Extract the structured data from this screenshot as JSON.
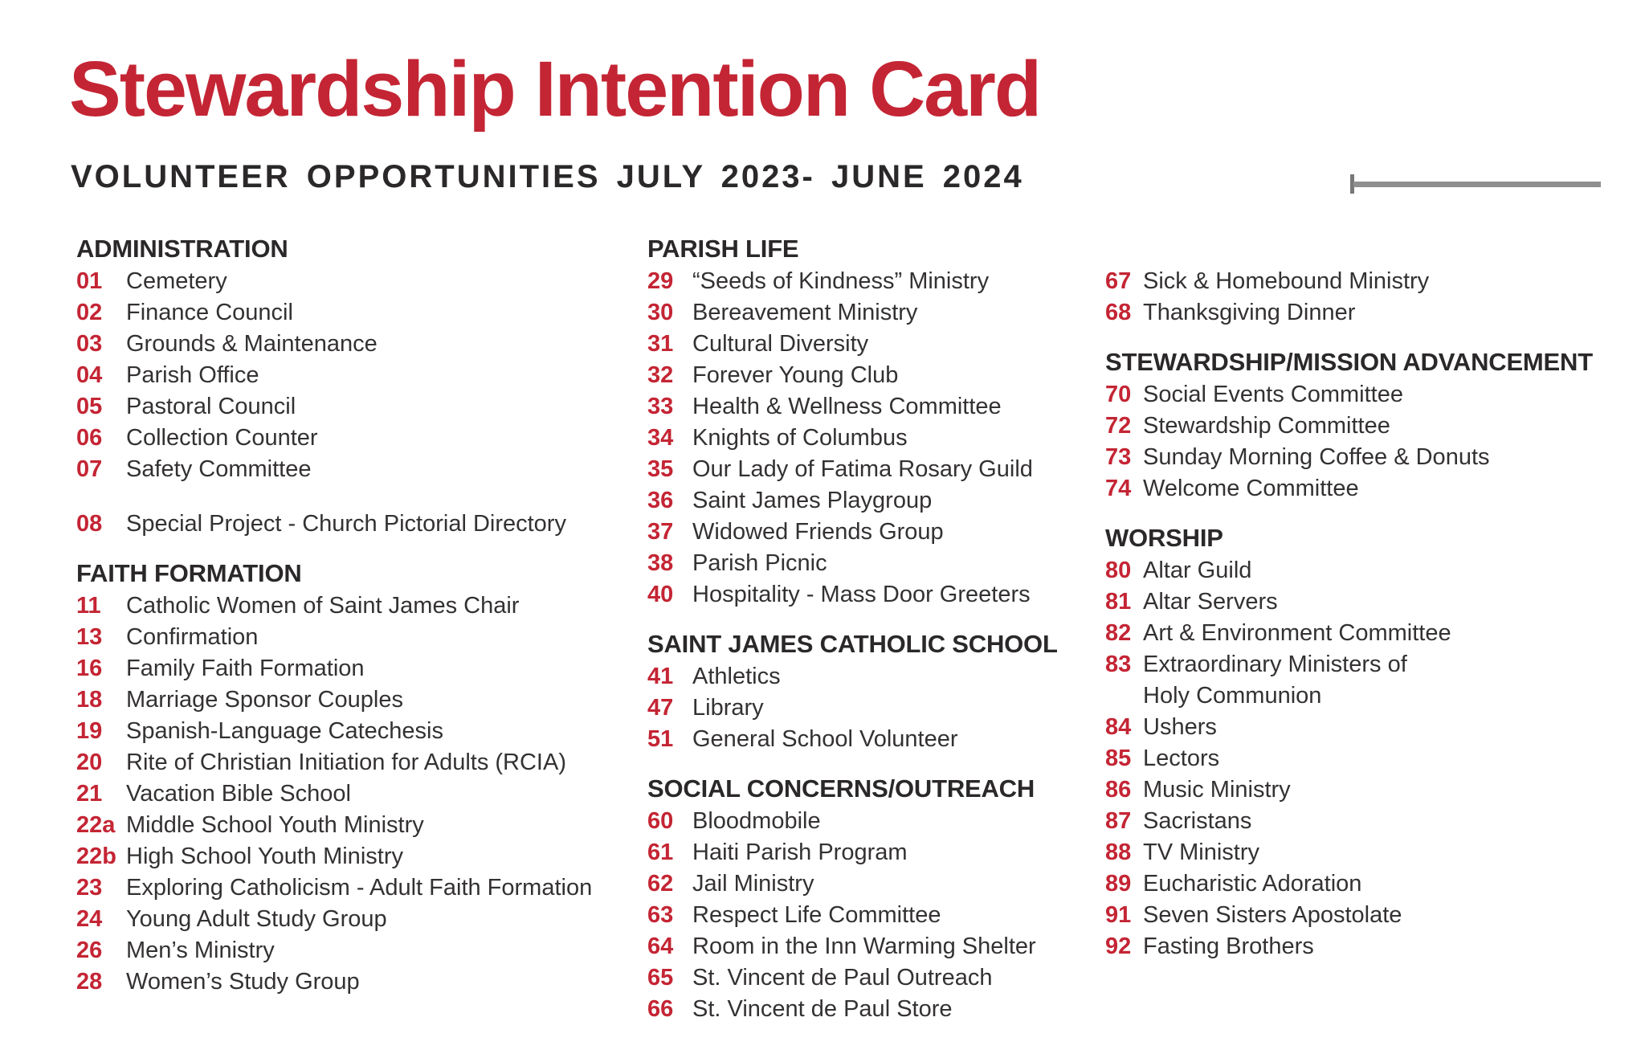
{
  "header": {
    "title": "Stewardship Intention Card",
    "subtitle": "VOLUNTEER OPPORTUNITIES JULY 2023- JUNE 2024"
  },
  "colors": {
    "accent_red": "#C42534",
    "ink_strong": "#2B2829",
    "ink_body": "#343132",
    "rule_bar_gray": "#8F8F8F",
    "rule_tick_gray": "#787878"
  },
  "columns": [
    {
      "sections": [
        {
          "heading": "ADMINISTRATION",
          "items": [
            {
              "num": "01",
              "label": "Cemetery"
            },
            {
              "num": "02",
              "label": "Finance Council"
            },
            {
              "num": "03",
              "label": "Grounds & Maintenance"
            },
            {
              "num": "04",
              "label": "Parish Office"
            },
            {
              "num": "05",
              "label": "Pastoral Council"
            },
            {
              "num": "06",
              "label": "Collection Counter"
            },
            {
              "num": "07",
              "label": "Safety Committee"
            },
            {
              "num": "08",
              "label": "Special Project - Church Pictorial Directory",
              "gap_before": true
            }
          ]
        },
        {
          "heading": "FAITH FORMATION",
          "items": [
            {
              "num": "11",
              "label": "Catholic Women of Saint James Chair"
            },
            {
              "num": "13",
              "label": "Confirmation"
            },
            {
              "num": "16",
              "label": "Family Faith Formation"
            },
            {
              "num": "18",
              "label": "Marriage Sponsor Couples"
            },
            {
              "num": "19",
              "label": "Spanish-Language Catechesis"
            },
            {
              "num": "20",
              "label": "Rite of Christian Initiation for Adults (RCIA)"
            },
            {
              "num": "21",
              "label": "Vacation Bible School"
            },
            {
              "num": "22a",
              "label": "Middle School Youth Ministry"
            },
            {
              "num": "22b",
              "label": "High School Youth Ministry"
            },
            {
              "num": "23",
              "label": "Exploring Catholicism - Adult Faith Formation"
            },
            {
              "num": "24",
              "label": "Young Adult Study Group"
            },
            {
              "num": "26",
              "label": "Men’s Ministry"
            },
            {
              "num": "28",
              "label": "Women’s Study Group"
            }
          ]
        }
      ]
    },
    {
      "sections": [
        {
          "heading": "PARISH LIFE",
          "items": [
            {
              "num": "29",
              "label": "“Seeds of Kindness” Ministry"
            },
            {
              "num": "30",
              "label": "Bereavement Ministry"
            },
            {
              "num": "31",
              "label": "Cultural Diversity"
            },
            {
              "num": "32",
              "label": "Forever Young Club"
            },
            {
              "num": "33",
              "label": "Health & Wellness Committee"
            },
            {
              "num": "34",
              "label": "Knights of Columbus"
            },
            {
              "num": "35",
              "label": "Our Lady of Fatima Rosary Guild"
            },
            {
              "num": "36",
              "label": "Saint James Playgroup"
            },
            {
              "num": "37",
              "label": "Widowed Friends Group"
            },
            {
              "num": "38",
              "label": "Parish Picnic"
            },
            {
              "num": "40",
              "label": "Hospitality - Mass Door Greeters"
            }
          ]
        },
        {
          "heading": "SAINT JAMES CATHOLIC SCHOOL",
          "items": [
            {
              "num": "41",
              "label": "Athletics"
            },
            {
              "num": "47",
              "label": "Library"
            },
            {
              "num": "51",
              "label": "General School Volunteer"
            }
          ]
        },
        {
          "heading": "SOCIAL CONCERNS/OUTREACH",
          "items": [
            {
              "num": "60",
              "label": "Bloodmobile"
            },
            {
              "num": "61",
              "label": "Haiti Parish Program"
            },
            {
              "num": "62",
              "label": "Jail Ministry"
            },
            {
              "num": "63",
              "label": "Respect Life Committee"
            },
            {
              "num": "64",
              "label": "Room in the Inn Warming Shelter"
            },
            {
              "num": "65",
              "label": "St. Vincent de Paul Outreach"
            },
            {
              "num": "66",
              "label": "St. Vincent de Paul Store"
            }
          ]
        }
      ]
    },
    {
      "sections": [
        {
          "heading": null,
          "items": [
            {
              "num": "67",
              "label": "Sick & Homebound Ministry"
            },
            {
              "num": "68",
              "label": "Thanksgiving Dinner"
            }
          ]
        },
        {
          "heading": "STEWARDSHIP/MISSION ADVANCEMENT",
          "items": [
            {
              "num": "70",
              "label": "Social Events Committee"
            },
            {
              "num": "72",
              "label": "Stewardship Committee"
            },
            {
              "num": "73",
              "label": "Sunday Morning Coffee & Donuts"
            },
            {
              "num": "74",
              "label": "Welcome Committee"
            }
          ]
        },
        {
          "heading": "WORSHIP",
          "items": [
            {
              "num": "80",
              "label": "Altar Guild"
            },
            {
              "num": "81",
              "label": "Altar Servers"
            },
            {
              "num": "82",
              "label": "Art & Environment Committee"
            },
            {
              "num": "83",
              "label": "Extraordinary Ministers of",
              "label2": "Holy Communion"
            },
            {
              "num": "84",
              "label": "Ushers"
            },
            {
              "num": "85",
              "label": "Lectors"
            },
            {
              "num": "86",
              "label": "Music Ministry"
            },
            {
              "num": "87",
              "label": "Sacristans"
            },
            {
              "num": "88",
              "label": "TV Ministry"
            },
            {
              "num": "89",
              "label": "Eucharistic Adoration"
            },
            {
              "num": "91",
              "label": "Seven Sisters Apostolate"
            },
            {
              "num": "92",
              "label": "Fasting Brothers"
            }
          ]
        }
      ]
    }
  ]
}
